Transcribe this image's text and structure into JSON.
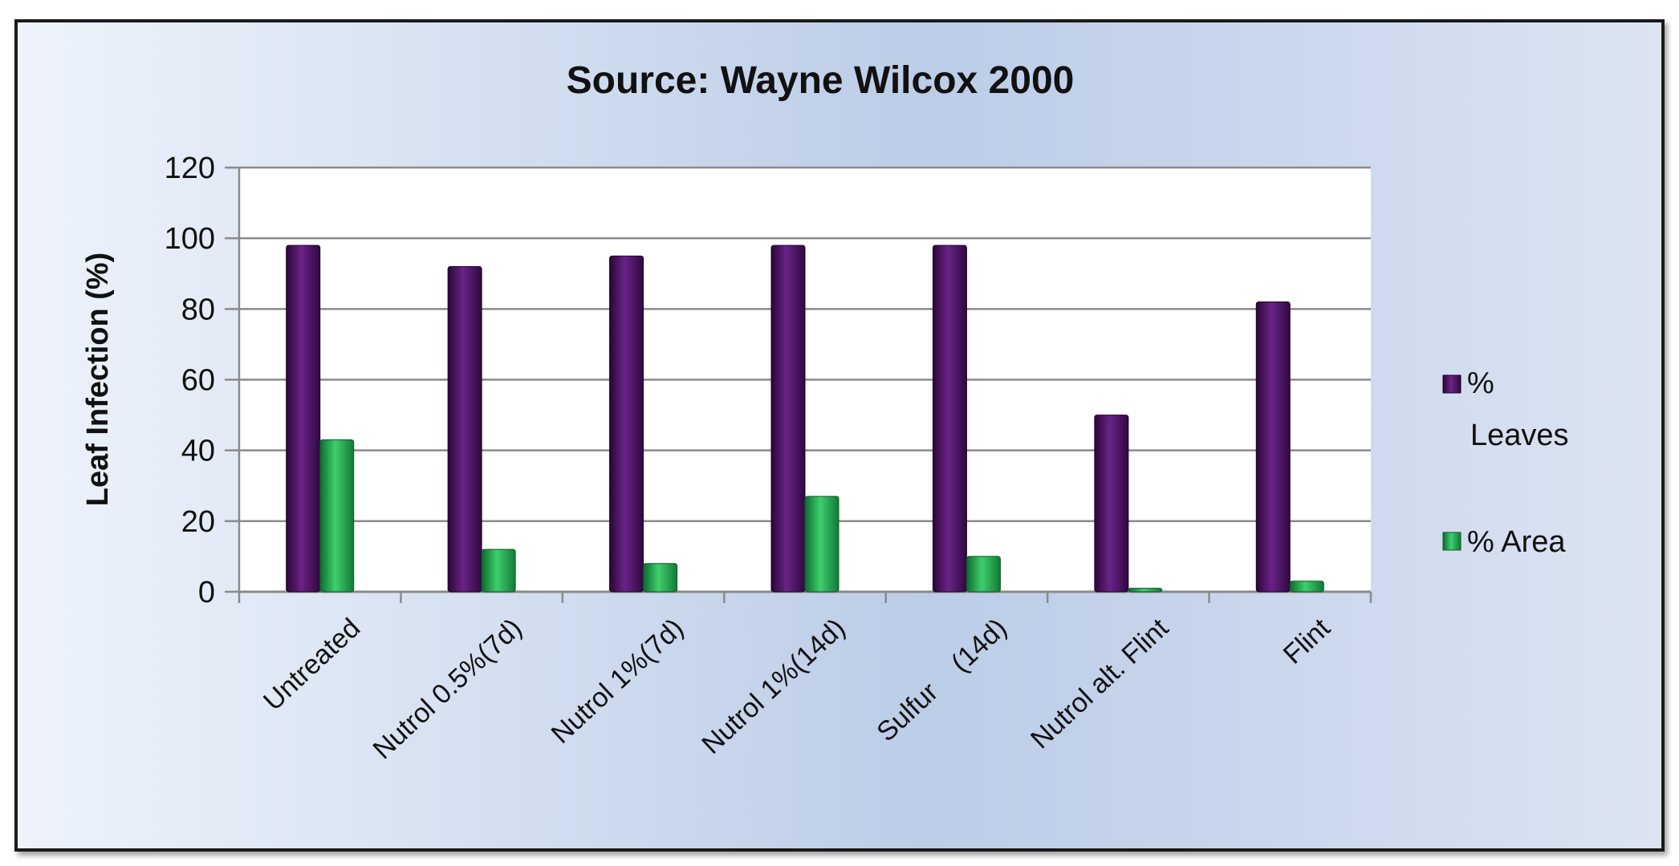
{
  "chart_data": {
    "type": "bar",
    "title": "Source: Wayne Wilcox 2000",
    "xlabel": "",
    "ylabel": "Leaf Infection (%)",
    "ylim": [
      0,
      120
    ],
    "yticks": [
      0,
      20,
      40,
      60,
      80,
      100,
      120
    ],
    "grid": true,
    "legend_position": "right",
    "categories": [
      "Untreated",
      "Nutrol 0.5%(7d)",
      "Nutrol 1%(7d)",
      "Nutrol 1%(14d)",
      "Sulfur    (14d)",
      "Nutrol alt. Flint",
      "Flint"
    ],
    "series": [
      {
        "name": "% Leaves",
        "color": "#4a1060",
        "values": [
          98,
          92,
          95,
          98,
          98,
          50,
          82
        ]
      },
      {
        "name": "% Area",
        "color": "#1f9a4a",
        "values": [
          43,
          12,
          8,
          27,
          10,
          1,
          3
        ]
      }
    ]
  },
  "legend": {
    "leaves_line1": "%",
    "leaves_line2": "Leaves",
    "area_label": "% Area"
  }
}
